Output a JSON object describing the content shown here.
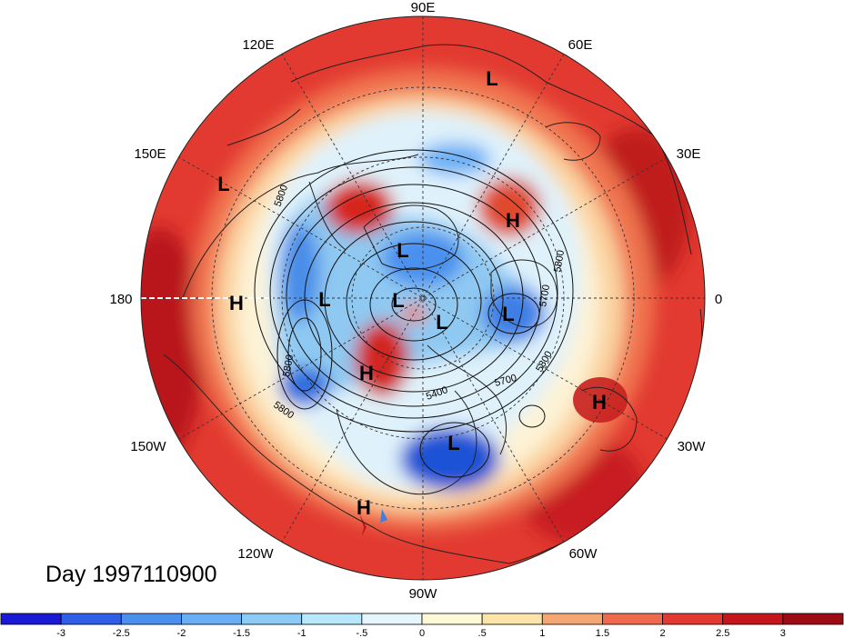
{
  "title": "Day 1997110900",
  "longitude_labels": {
    "deg90E": "90E",
    "deg60E": "60E",
    "deg30E": "30E",
    "deg0": "0",
    "deg30W": "30W",
    "deg60W": "60W",
    "deg90W": "90W",
    "deg120W": "120W",
    "deg150W": "150W",
    "deg180": "180",
    "deg150E": "150E",
    "deg120E": "120E"
  },
  "pressure_centers": [
    {
      "label": "L",
      "region": "north-asia"
    },
    {
      "label": "L",
      "region": "western-pacific"
    },
    {
      "label": "H",
      "region": "dateline"
    },
    {
      "label": "H",
      "region": "scandinavia"
    },
    {
      "label": "L",
      "region": "arctic-siberia"
    },
    {
      "label": "L",
      "region": "bering"
    },
    {
      "label": "L",
      "region": "pole"
    },
    {
      "label": "L",
      "region": "greenland"
    },
    {
      "label": "L",
      "region": "norwegian-sea"
    },
    {
      "label": "H",
      "region": "alaska"
    },
    {
      "label": "H",
      "region": "north-africa"
    },
    {
      "label": "L",
      "region": "eastern-usa"
    },
    {
      "label": "H",
      "region": "eastern-pacific"
    }
  ],
  "contour_labels": [
    "5800",
    "5800",
    "5800",
    "5800",
    "5700",
    "5700",
    "5400",
    "5600",
    "5800"
  ],
  "colorbar": {
    "tick_labels": [
      "-3",
      "-2.5",
      "-2",
      "-1.5",
      "-1",
      "-.5",
      "0",
      ".5",
      "1",
      "1.5",
      "2",
      "2.5",
      "3"
    ],
    "colors": [
      "#1a1ad6",
      "#2f5fe8",
      "#4a90ef",
      "#6aaff5",
      "#8ccbf7",
      "#b8e8fb",
      "#e6f6fd",
      "#fdf8d5",
      "#fde4a8",
      "#f6a672",
      "#ef6a4c",
      "#e43832",
      "#c4161b",
      "#9e0b14"
    ]
  },
  "field_colors": {
    "warm_outer": "#e23a30",
    "warm_mid": "#f0744f",
    "light_warm": "#fbd3a0",
    "neutral": "#fdf3d6",
    "cool_light": "#dff2fb",
    "cool_mid": "#8fc9f2",
    "cool_deep": "#2f6ee0"
  }
}
